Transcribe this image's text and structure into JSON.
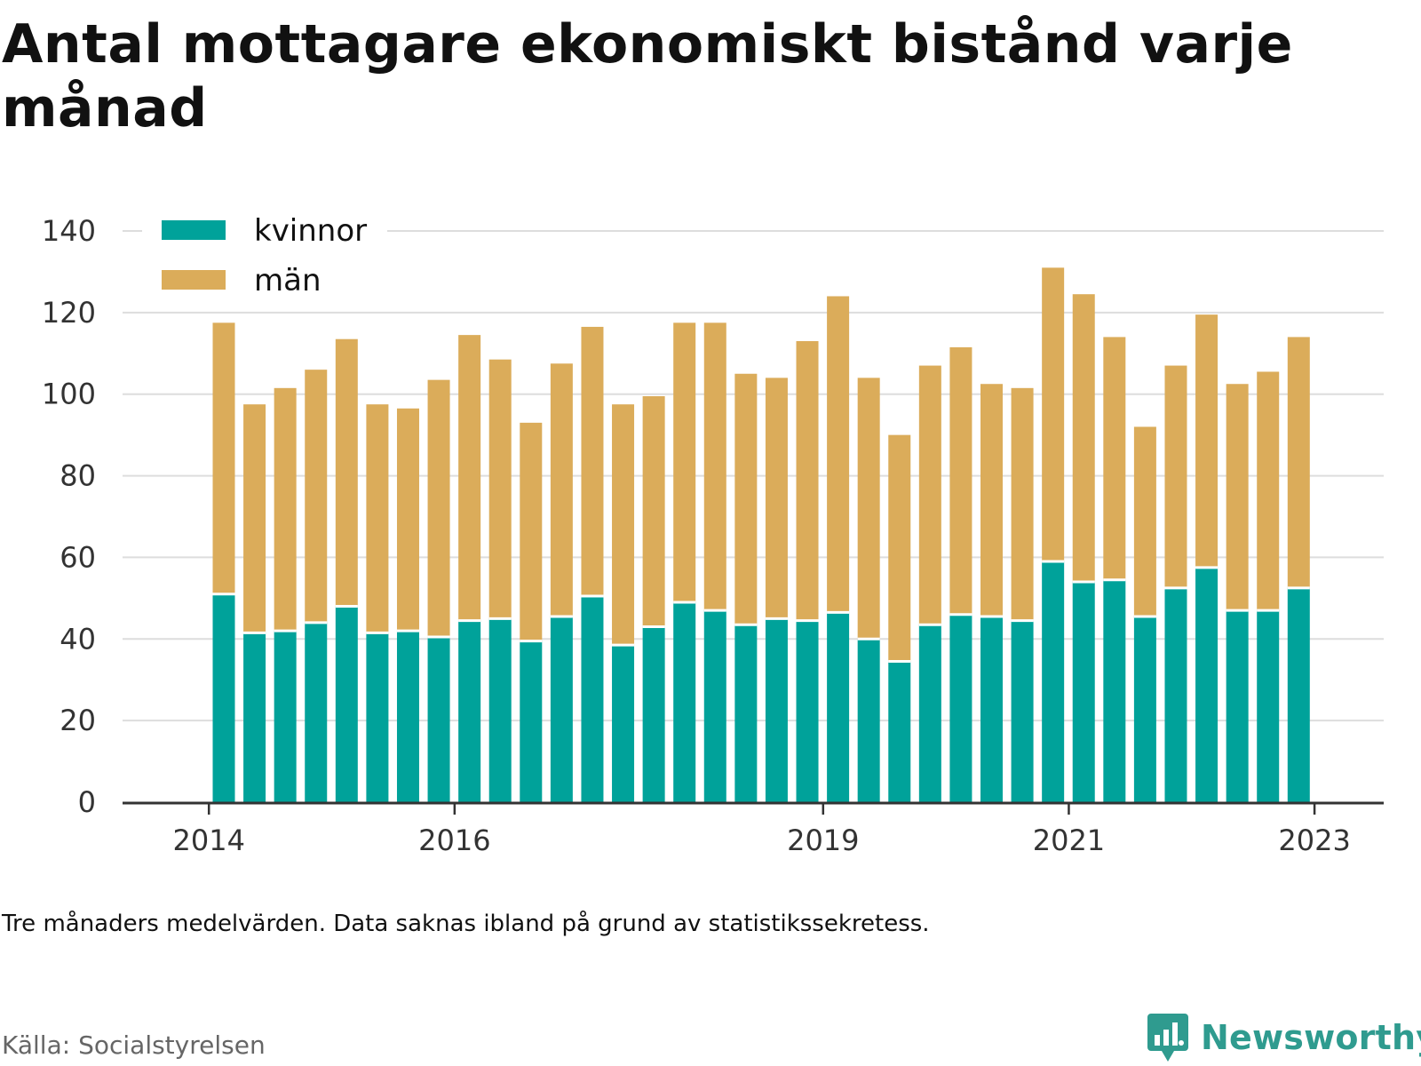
{
  "title": "Antal mottagare ekonomiskt bistånd varje månad",
  "note": "Tre månaders medelvärden. Data saknas ibland på grund av statistikssekretess.",
  "source": "Källa: Socialstyrelsen",
  "brand": {
    "name": "Newsworthy",
    "icon": "newsworthy-logo-icon"
  },
  "colors": {
    "kvinnor": "#00a29a",
    "man": "#dbac5a",
    "grid": "#dddddd",
    "axis": "#333333"
  },
  "chart_data": {
    "type": "bar",
    "stacked": true,
    "title": "Antal mottagare ekonomiskt bistånd varje månad",
    "xlabel": "",
    "ylabel": "",
    "ylim": [
      0,
      140
    ],
    "yticks": [
      0,
      20,
      40,
      60,
      80,
      100,
      120,
      140
    ],
    "grid": true,
    "legend": "top-left",
    "x_ticks": [
      {
        "label": "2014",
        "index": -1
      },
      {
        "label": "2016",
        "index": 7
      },
      {
        "label": "2019",
        "index": 19
      },
      {
        "label": "2021",
        "index": 27
      },
      {
        "label": "2023",
        "index": 35
      }
    ],
    "series": [
      {
        "name": "kvinnor",
        "color": "#00a29a",
        "values": [
          51,
          41.5,
          42,
          44,
          48,
          41.5,
          42,
          40.5,
          44.5,
          45,
          39.5,
          45.5,
          50.5,
          38.5,
          43,
          49,
          47,
          43.5,
          45,
          44.5,
          46.5,
          40,
          34.5,
          43.5,
          46,
          45.5,
          44.5,
          59,
          54,
          54.5,
          45.5,
          52.5,
          57.5,
          47,
          47,
          52.5
        ]
      },
      {
        "name": "män",
        "color": "#dbac5a",
        "values": [
          66.5,
          56,
          59.5,
          62,
          65.5,
          56,
          54.5,
          63,
          70,
          63.5,
          53.5,
          62,
          66,
          59,
          56.5,
          68.5,
          70.5,
          61.5,
          59,
          68.5,
          77.5,
          64,
          55.5,
          63.5,
          65.5,
          57,
          57,
          72,
          70.5,
          59.5,
          46.5,
          54.5,
          62,
          55.5,
          58.5,
          61.5
        ]
      }
    ]
  }
}
